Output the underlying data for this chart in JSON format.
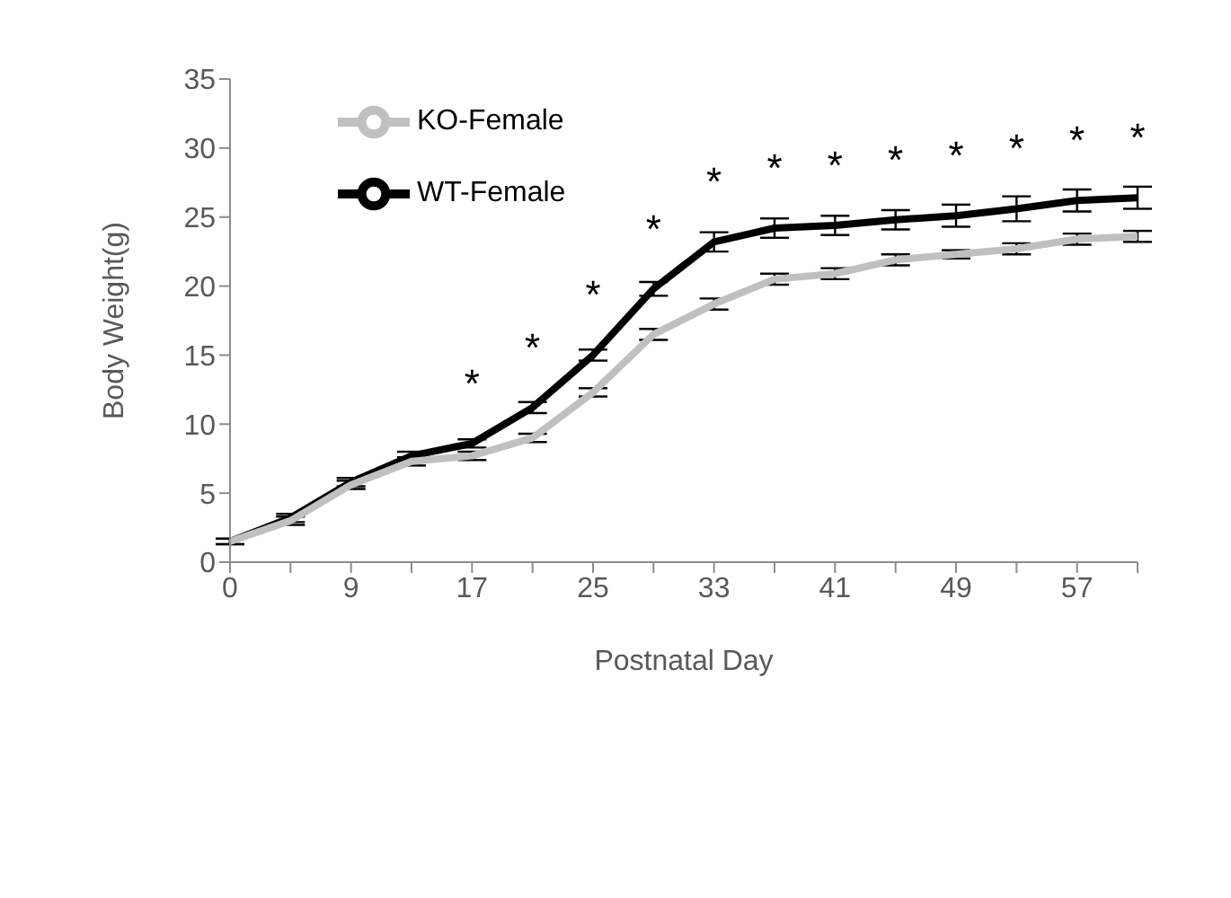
{
  "chart_data": {
    "type": "line",
    "xlabel": "Postnatal Day",
    "ylabel": "Body Weight(g)",
    "categories": [
      "0",
      null,
      "9",
      null,
      "17",
      null,
      "25",
      null,
      "33",
      null,
      "41",
      null,
      "49",
      null,
      "57",
      null
    ],
    "series": [
      {
        "name": "WT-Female",
        "color": "#000000",
        "values": [
          1.5,
          3.2,
          5.8,
          7.7,
          8.6,
          11.2,
          15.0,
          19.8,
          23.2,
          24.2,
          24.4,
          24.8,
          25.1,
          25.6,
          26.2,
          26.4
        ],
        "errors": [
          0.2,
          0.3,
          0.3,
          0.3,
          0.3,
          0.4,
          0.4,
          0.5,
          0.7,
          0.7,
          0.7,
          0.7,
          0.8,
          0.9,
          0.8,
          0.8
        ],
        "value_labels": [
          null,
          null,
          null,
          null,
          "*",
          "*",
          "*",
          "*",
          "*",
          "*",
          "*",
          "*",
          "*",
          "*",
          "*",
          "*"
        ]
      },
      {
        "name": "KO-Female",
        "color": "#c0c0c0",
        "values": [
          1.5,
          3.0,
          5.6,
          7.3,
          7.7,
          9.0,
          12.3,
          16.5,
          18.7,
          20.5,
          20.9,
          21.9,
          22.3,
          22.7,
          23.4,
          23.6
        ],
        "errors": [
          0.2,
          0.3,
          0.3,
          0.3,
          0.3,
          0.3,
          0.3,
          0.4,
          0.4,
          0.4,
          0.4,
          0.4,
          0.3,
          0.4,
          0.4,
          0.4
        ]
      }
    ],
    "ylim": [
      0,
      35
    ],
    "yticks": [
      0,
      5,
      10,
      15,
      20,
      25,
      30,
      35
    ],
    "grid": false,
    "legend": "top left",
    "marker": "none",
    "line_style": "solid"
  }
}
